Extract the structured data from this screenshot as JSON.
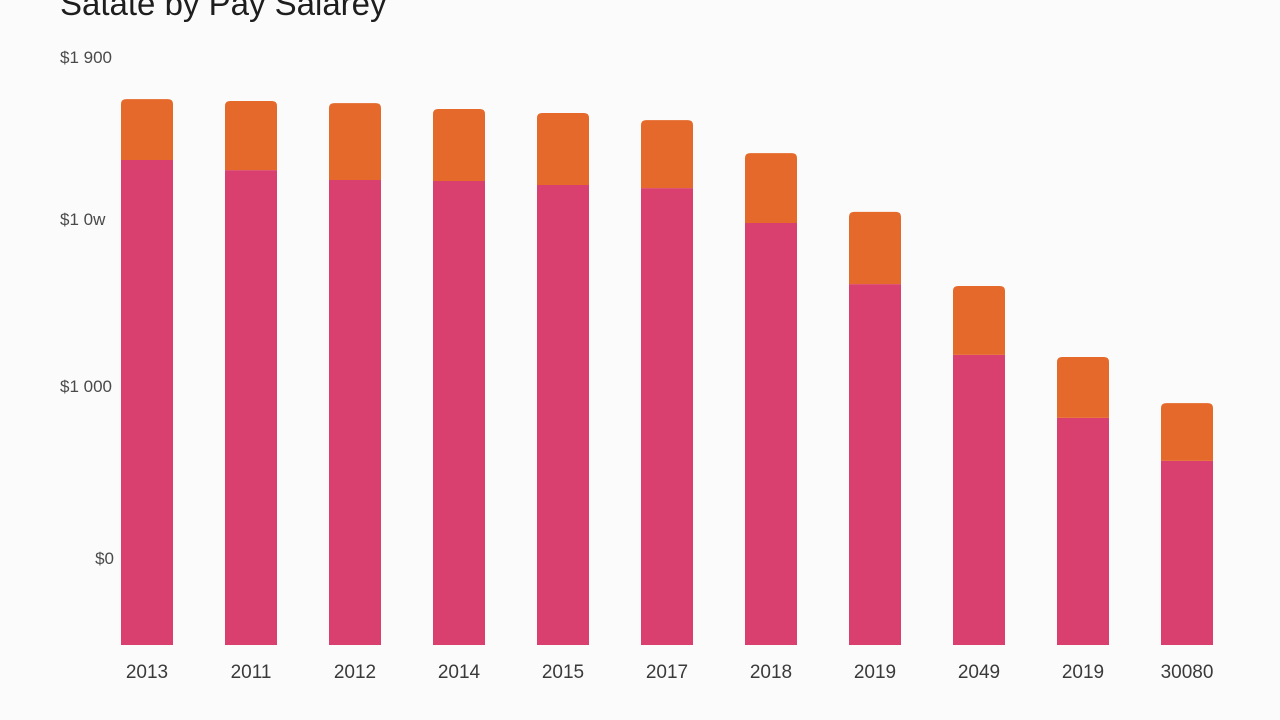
{
  "chart_data": {
    "type": "bar",
    "stacked": true,
    "title": "Satate by Pay Salarey",
    "xlabel": "",
    "ylabel": "",
    "ylim": [
      0,
      1900
    ],
    "grid": false,
    "y_tick_labels": [
      "$1 900",
      "$1 0w",
      "$1 000",
      "$0"
    ],
    "categories": [
      "2013",
      "2011",
      "2012",
      "2014",
      "2015",
      "2017",
      "2018",
      "2019",
      "2049",
      "2019",
      "30080"
    ],
    "series": [
      {
        "color": "#d9406f",
        "values": [
          1570,
          1537,
          1505,
          1502,
          1489,
          1479,
          1366,
          1168,
          939,
          735,
          596
        ]
      },
      {
        "color": "#e5692a",
        "values": [
          197,
          224,
          249,
          233,
          233,
          220,
          226,
          234,
          223,
          197,
          187
        ]
      }
    ]
  }
}
